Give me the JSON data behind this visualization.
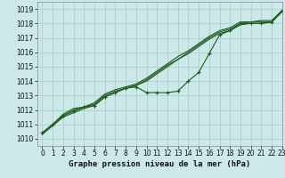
{
  "title": "Graphe pression niveau de la mer (hPa)",
  "bg_color": "#cce8e8",
  "grid_color": "#aacfcf",
  "line_color": "#1a5c1a",
  "marker_color": "#1a5c1a",
  "xlim": [
    -0.5,
    23
  ],
  "ylim": [
    1009.5,
    1019.5
  ],
  "xticks": [
    0,
    1,
    2,
    3,
    4,
    5,
    6,
    7,
    8,
    9,
    10,
    11,
    12,
    13,
    14,
    15,
    16,
    17,
    18,
    19,
    20,
    21,
    22,
    23
  ],
  "yticks": [
    1010,
    1011,
    1012,
    1013,
    1014,
    1015,
    1016,
    1017,
    1018,
    1019
  ],
  "series": [
    {
      "x": [
        0,
        1,
        2,
        3,
        4,
        5,
        6,
        7,
        8,
        9,
        10,
        11,
        12,
        13,
        14,
        15,
        16,
        17,
        18,
        19,
        20,
        21,
        22,
        23
      ],
      "y": [
        1010.4,
        1011.0,
        1011.6,
        1011.9,
        1012.2,
        1012.3,
        1012.9,
        1013.2,
        1013.5,
        1013.6,
        1013.2,
        1013.2,
        1013.2,
        1013.3,
        1014.0,
        1014.6,
        1015.9,
        1017.2,
        1017.5,
        1018.0,
        1018.0,
        1018.0,
        1018.1,
        1018.9
      ],
      "marker": "+"
    },
    {
      "x": [
        0,
        1,
        2,
        3,
        4,
        5,
        6,
        7,
        8,
        9,
        10,
        11,
        12,
        13,
        14,
        15,
        16,
        17,
        18,
        19,
        20,
        21,
        22,
        23
      ],
      "y": [
        1010.4,
        1011.0,
        1011.6,
        1012.0,
        1012.2,
        1012.4,
        1013.0,
        1013.3,
        1013.5,
        1013.7,
        1014.0,
        1014.5,
        1015.0,
        1015.5,
        1016.0,
        1016.5,
        1017.0,
        1017.4,
        1017.6,
        1018.0,
        1018.1,
        1018.1,
        1018.1,
        1018.9
      ],
      "marker": null
    },
    {
      "x": [
        0,
        1,
        2,
        3,
        4,
        5,
        6,
        7,
        8,
        9,
        10,
        11,
        12,
        13,
        14,
        15,
        16,
        17,
        18,
        19,
        20,
        21,
        22,
        23
      ],
      "y": [
        1010.4,
        1011.0,
        1011.7,
        1012.1,
        1012.2,
        1012.5,
        1013.1,
        1013.4,
        1013.6,
        1013.8,
        1014.2,
        1014.7,
        1015.2,
        1015.7,
        1016.1,
        1016.6,
        1017.1,
        1017.5,
        1017.7,
        1018.1,
        1018.1,
        1018.2,
        1018.2,
        1018.9
      ],
      "marker": null
    },
    {
      "x": [
        0,
        1,
        2,
        3,
        4,
        5,
        6,
        7,
        8,
        9,
        10,
        11,
        12,
        13,
        14,
        15,
        16,
        17,
        18,
        19,
        20,
        21,
        22,
        23
      ],
      "y": [
        1010.3,
        1010.9,
        1011.5,
        1011.8,
        1012.1,
        1012.3,
        1012.9,
        1013.2,
        1013.5,
        1013.7,
        1014.1,
        1014.6,
        1015.1,
        1015.5,
        1015.9,
        1016.4,
        1016.9,
        1017.3,
        1017.5,
        1017.9,
        1018.0,
        1018.0,
        1018.1,
        1018.8
      ],
      "marker": null
    }
  ],
  "tick_fontsize": 5.5,
  "title_fontsize": 6.5
}
